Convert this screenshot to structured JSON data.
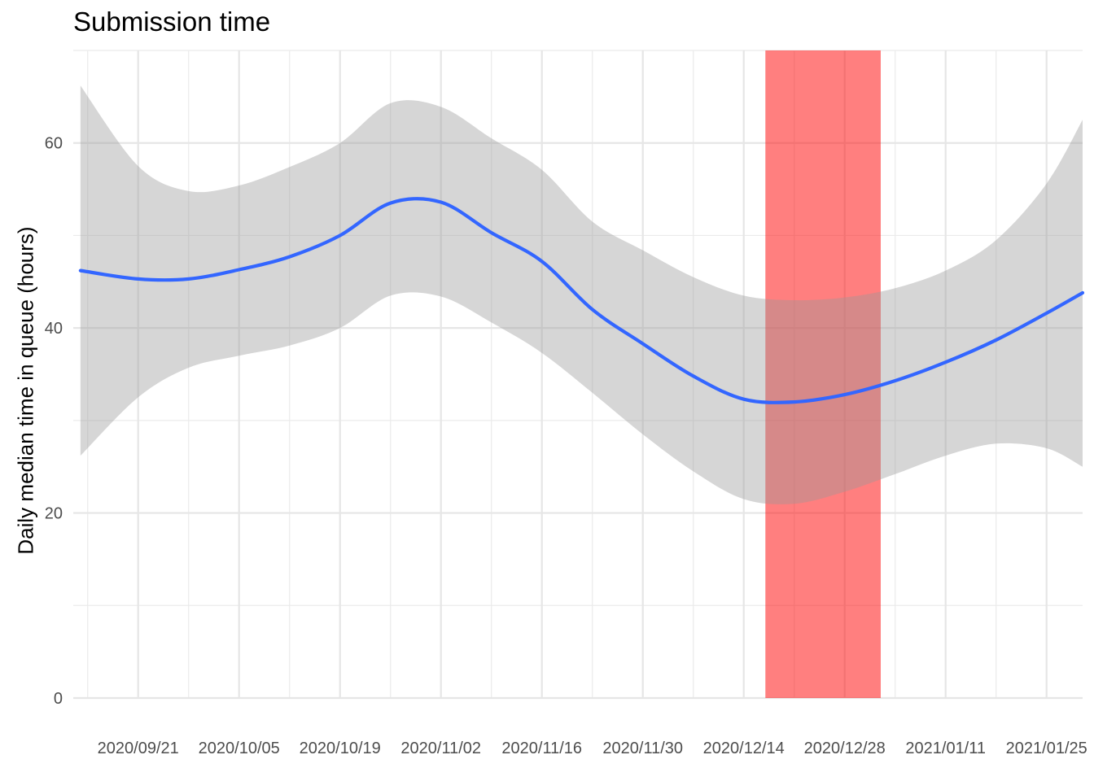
{
  "chart_data": {
    "type": "line",
    "title": "Submission time",
    "xlabel": "",
    "ylabel": "Daily median time in queue (hours)",
    "x_tick_labels": [
      "2020/09/21",
      "2020/10/05",
      "2020/10/19",
      "2020/11/02",
      "2020/11/16",
      "2020/11/30",
      "2020/12/14",
      "2020/12/28",
      "2021/01/11",
      "2021/01/25"
    ],
    "x_ticks": [
      "2020-09-21",
      "2020-10-05",
      "2020-10-19",
      "2020-11-02",
      "2020-11-16",
      "2020-11-30",
      "2020-12-14",
      "2020-12-28",
      "2021-01-11",
      "2021-01-25"
    ],
    "y_ticks": [
      0,
      20,
      40,
      60
    ],
    "xlim": [
      "2020-09-12",
      "2021-01-30"
    ],
    "ylim": [
      0,
      70
    ],
    "grid": true,
    "series": [
      {
        "color": "#3366FF",
        "points": [
          {
            "x": "2020-09-13",
            "y": 46.2,
            "lo": 26.2,
            "hi": 66.2
          },
          {
            "x": "2020-09-21",
            "y": 45.3,
            "lo": 32.5,
            "hi": 57.5
          },
          {
            "x": "2020-09-28",
            "y": 45.3,
            "lo": 35.7,
            "hi": 54.8
          },
          {
            "x": "2020-10-05",
            "y": 46.3,
            "lo": 37.0,
            "hi": 55.4
          },
          {
            "x": "2020-10-12",
            "y": 47.7,
            "lo": 38.1,
            "hi": 57.4
          },
          {
            "x": "2020-10-19",
            "y": 50.0,
            "lo": 40.0,
            "hi": 60.0
          },
          {
            "x": "2020-10-26",
            "y": 53.5,
            "lo": 43.5,
            "hi": 64.3
          },
          {
            "x": "2020-11-02",
            "y": 53.6,
            "lo": 43.4,
            "hi": 63.9
          },
          {
            "x": "2020-11-09",
            "y": 50.3,
            "lo": 40.6,
            "hi": 60.5
          },
          {
            "x": "2020-11-16",
            "y": 47.2,
            "lo": 37.3,
            "hi": 57.1
          },
          {
            "x": "2020-11-23",
            "y": 42.0,
            "lo": 33.0,
            "hi": 51.5
          },
          {
            "x": "2020-11-30",
            "y": 38.3,
            "lo": 28.5,
            "hi": 48.4
          },
          {
            "x": "2020-12-07",
            "y": 34.8,
            "lo": 24.5,
            "hi": 45.5
          },
          {
            "x": "2020-12-14",
            "y": 32.3,
            "lo": 21.5,
            "hi": 43.5
          },
          {
            "x": "2020-12-21",
            "y": 32.0,
            "lo": 21.0,
            "hi": 43.0
          },
          {
            "x": "2020-12-28",
            "y": 32.8,
            "lo": 22.3,
            "hi": 43.3
          },
          {
            "x": "2021-01-04",
            "y": 34.3,
            "lo": 24.2,
            "hi": 44.3
          },
          {
            "x": "2021-01-11",
            "y": 36.3,
            "lo": 26.2,
            "hi": 46.2
          },
          {
            "x": "2021-01-18",
            "y": 38.7,
            "lo": 27.5,
            "hi": 49.5
          },
          {
            "x": "2021-01-25",
            "y": 41.6,
            "lo": 27.0,
            "hi": 55.6
          },
          {
            "x": "2021-01-30",
            "y": 43.8,
            "lo": 25.0,
            "hi": 62.5
          }
        ]
      }
    ],
    "ribbon_color": "#999999",
    "highlight": {
      "from": "2020-12-17",
      "to": "2021-01-02",
      "color": "#FF0000"
    }
  }
}
